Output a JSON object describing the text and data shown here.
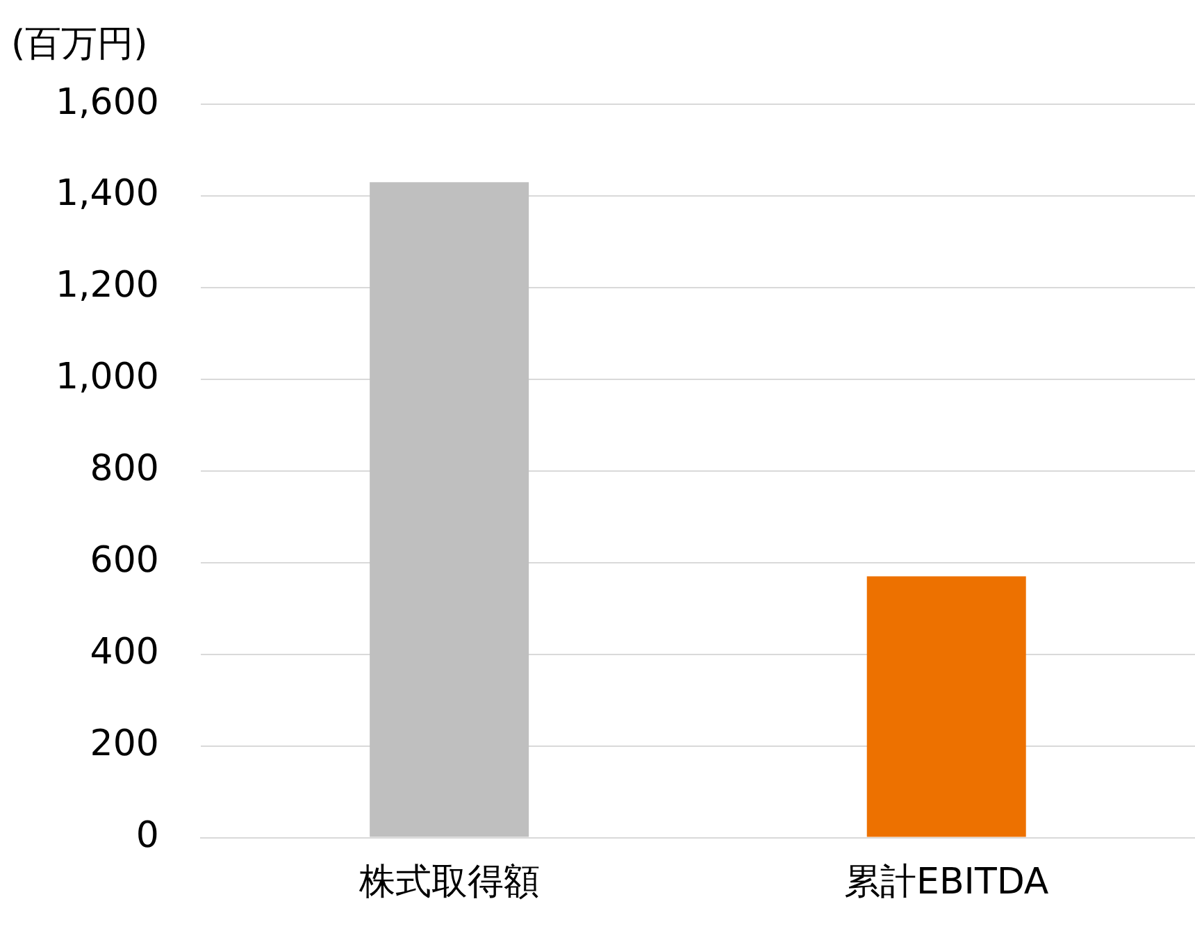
{
  "chart_data": {
    "type": "bar",
    "ylabel": "(百万円)",
    "categories": [
      "株式取得額",
      "累計EBITDA"
    ],
    "values": [
      1430,
      570
    ],
    "colors": [
      "#bfbfbf",
      "#ed7100"
    ],
    "ylim": [
      0,
      1600
    ],
    "yticks": [
      0,
      200,
      400,
      600,
      800,
      {
        "value": 1000,
        "label": "1,000"
      },
      {
        "value": 1200,
        "label": "1,200"
      },
      {
        "value": 1400,
        "label": "1,400"
      },
      {
        "value": 1600,
        "label": "1,600"
      }
    ],
    "grid": "y",
    "legend": false
  }
}
